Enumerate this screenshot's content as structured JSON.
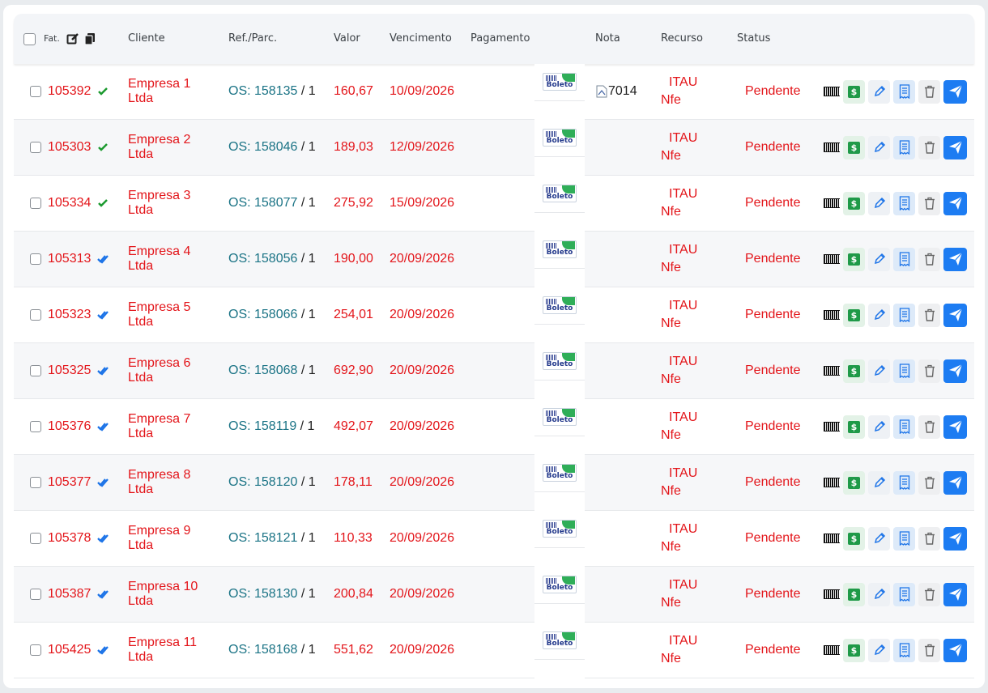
{
  "header": {
    "fat_label": "Fat.",
    "columns": [
      "Cliente",
      "Ref./Parc.",
      "Valor",
      "Vencimento",
      "Pagamento",
      "Nota",
      "Recurso",
      "Status"
    ]
  },
  "colors": {
    "accent_red": "#e3151a",
    "link_teal": "#1a7385",
    "check_green": "#1b9a2f",
    "check_blue": "#1d74e8",
    "send_blue": "#1d7cf2"
  },
  "rows": [
    {
      "id": "105392",
      "check": "green",
      "client1": "Empresa 1",
      "client2": "Ltda",
      "os": "OS: 158135",
      "parc": " / 1",
      "valor": "160,67",
      "venc": "10/09/2026",
      "pay": "Boleto",
      "nota": "7014",
      "rec1": "ITAU",
      "rec2": "Nfe",
      "status": "Pendente"
    },
    {
      "id": "105303",
      "check": "green",
      "client1": "Empresa 2",
      "client2": "Ltda",
      "os": "OS: 158046",
      "parc": " / 1",
      "valor": "189,03",
      "venc": "12/09/2026",
      "pay": "Boleto",
      "nota": "",
      "rec1": "ITAU",
      "rec2": "Nfe",
      "status": "Pendente"
    },
    {
      "id": "105334",
      "check": "green",
      "client1": "Empresa 3",
      "client2": "Ltda",
      "os": "OS: 158077",
      "parc": " / 1",
      "valor": "275,92",
      "venc": "15/09/2026",
      "pay": "Boleto",
      "nota": "",
      "rec1": "ITAU",
      "rec2": "Nfe",
      "status": "Pendente"
    },
    {
      "id": "105313",
      "check": "blue",
      "client1": "Empresa 4",
      "client2": "Ltda",
      "os": "OS: 158056",
      "parc": " / 1",
      "valor": "190,00",
      "venc": "20/09/2026",
      "pay": "Boleto",
      "nota": "",
      "rec1": "ITAU",
      "rec2": "Nfe",
      "status": "Pendente"
    },
    {
      "id": "105323",
      "check": "blue",
      "client1": "Empresa 5",
      "client2": "Ltda",
      "os": "OS: 158066",
      "parc": " / 1",
      "valor": "254,01",
      "venc": "20/09/2026",
      "pay": "Boleto",
      "nota": "",
      "rec1": "ITAU",
      "rec2": "Nfe",
      "status": "Pendente"
    },
    {
      "id": "105325",
      "check": "blue",
      "client1": "Empresa 6",
      "client2": "Ltda",
      "os": "OS: 158068",
      "parc": " / 1",
      "valor": "692,90",
      "venc": "20/09/2026",
      "pay": "Boleto",
      "nota": "",
      "rec1": "ITAU",
      "rec2": "Nfe",
      "status": "Pendente"
    },
    {
      "id": "105376",
      "check": "blue",
      "client1": "Empresa 7",
      "client2": "Ltda",
      "os": "OS: 158119",
      "parc": " / 1",
      "valor": "492,07",
      "venc": "20/09/2026",
      "pay": "Boleto",
      "nota": "",
      "rec1": "ITAU",
      "rec2": "Nfe",
      "status": "Pendente"
    },
    {
      "id": "105377",
      "check": "blue",
      "client1": "Empresa 8",
      "client2": "Ltda",
      "os": "OS: 158120",
      "parc": " / 1",
      "valor": "178,11",
      "venc": "20/09/2026",
      "pay": "Boleto",
      "nota": "",
      "rec1": "ITAU",
      "rec2": "Nfe",
      "status": "Pendente"
    },
    {
      "id": "105378",
      "check": "blue",
      "client1": "Empresa 9",
      "client2": "Ltda",
      "os": "OS: 158121",
      "parc": " / 1",
      "valor": "110,33",
      "venc": "20/09/2026",
      "pay": "Boleto",
      "nota": "",
      "rec1": "ITAU",
      "rec2": "Nfe",
      "status": "Pendente"
    },
    {
      "id": "105387",
      "check": "blue",
      "client1": "Empresa 10",
      "client2": "Ltda",
      "os": "OS: 158130",
      "parc": " / 1",
      "valor": "200,84",
      "venc": "20/09/2026",
      "pay": "Boleto",
      "nota": "",
      "rec1": "ITAU",
      "rec2": "Nfe",
      "status": "Pendente"
    },
    {
      "id": "105425",
      "check": "blue",
      "client1": "Empresa 11",
      "client2": "Ltda",
      "os": "OS: 158168",
      "parc": " / 1",
      "valor": "551,62",
      "venc": "20/09/2026",
      "pay": "Boleto",
      "nota": "",
      "rec1": "ITAU",
      "rec2": "Nfe",
      "status": "Pendente"
    }
  ]
}
